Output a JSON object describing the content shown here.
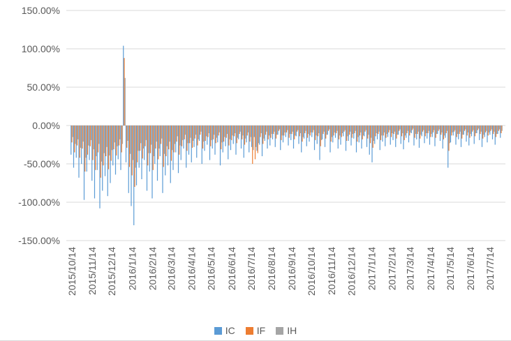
{
  "chart_data": {
    "type": "bar",
    "grid": true,
    "legend_position": "bottom",
    "y_axis": {
      "ticks": [
        "150.00%",
        "100.00%",
        "50.00%",
        "0.00%",
        "-50.00%",
        "-100.00%",
        "-150.00%"
      ],
      "min": -150,
      "max": 150,
      "unit": "%"
    },
    "x_axis": {
      "tick_labels": [
        "2015/10/14",
        "2015/11/14",
        "2015/12/14",
        "2016/1/14",
        "2016/2/14",
        "2016/3/14",
        "2016/4/14",
        "2016/5/14",
        "2016/6/14",
        "2016/7/14",
        "2016/8/14",
        "2016/9/14",
        "2016/10/14",
        "2016/11/14",
        "2016/12/14",
        "2017/1/14",
        "2017/2/14",
        "2017/3/14",
        "2017/4/14",
        "2017/5/14",
        "2017/6/14",
        "2017/7/14"
      ],
      "start_date": "2015/10/14",
      "end_date": "2017/7/31",
      "point_interval_days": 4
    },
    "series": [
      {
        "name": "IC",
        "color": "#5B9BD5",
        "values": [
          -38,
          -55,
          -42,
          -68,
          -50,
          -97,
          -60,
          -45,
          -72,
          -95,
          -58,
          -108,
          -85,
          -66,
          -92,
          -75,
          -52,
          -64,
          -44,
          -58,
          104,
          -48,
          -88,
          -105,
          -130,
          -78,
          -55,
          -70,
          -45,
          -85,
          -60,
          -95,
          -50,
          -72,
          -40,
          -88,
          -65,
          -52,
          -75,
          -58,
          -35,
          -62,
          -45,
          -30,
          -55,
          -38,
          -48,
          -28,
          -42,
          -20,
          -50,
          -33,
          -25,
          -45,
          -30,
          -38,
          -22,
          -52,
          -35,
          -27,
          -44,
          -32,
          -24,
          -38,
          -18,
          -30,
          -42,
          -22,
          -35,
          -28,
          -15,
          -33,
          -25,
          -40,
          -20,
          -30,
          -26,
          -18,
          -28,
          -12,
          -32,
          -22,
          -15,
          -26,
          -19,
          -30,
          -14,
          -24,
          -35,
          -17,
          -27,
          -21,
          -15,
          -32,
          -24,
          -45,
          -18,
          -28,
          -12,
          -35,
          -22,
          -16,
          -30,
          -25,
          -14,
          -33,
          -20,
          -26,
          -17,
          -35,
          -22,
          -30,
          -14,
          -28,
          -38,
          -48,
          -24,
          -18,
          -32,
          -21,
          -27,
          -15,
          -25,
          -19,
          -28,
          -12,
          -24,
          -31,
          -16,
          -22,
          -10,
          -26,
          -18,
          -29,
          -14,
          -23,
          -17,
          -25,
          -15,
          -27,
          -11,
          -20,
          -30,
          -16,
          -55,
          -22,
          -13,
          -25,
          -18,
          -28,
          -12,
          -21,
          -26,
          -14,
          -24,
          -10,
          -19,
          -28,
          -15,
          -22,
          -12,
          -18,
          -25,
          -11,
          -16
        ]
      },
      {
        "name": "IF",
        "color": "#ED7D31",
        "values": [
          -22,
          -35,
          -26,
          -42,
          -30,
          -60,
          -38,
          -27,
          -45,
          -58,
          -35,
          -68,
          -52,
          -40,
          -57,
          -46,
          -31,
          -39,
          -26,
          -35,
          88,
          -29,
          -54,
          -65,
          -80,
          -48,
          -33,
          -43,
          -27,
          -52,
          -36,
          -58,
          -30,
          -44,
          -24,
          -54,
          -40,
          -31,
          -46,
          -35,
          -21,
          -38,
          -27,
          -18,
          -33,
          -23,
          -29,
          -17,
          -26,
          -12,
          -30,
          -20,
          -15,
          -27,
          -18,
          -23,
          -13,
          -31,
          -21,
          -16,
          -26,
          -19,
          -14,
          -23,
          -11,
          -18,
          -25,
          -13,
          -21,
          -50,
          -44,
          -36,
          -15,
          -24,
          -12,
          -18,
          -16,
          -11,
          -17,
          -7,
          -19,
          -13,
          -9,
          -16,
          -11,
          -18,
          -8,
          -14,
          -21,
          -10,
          -16,
          -13,
          -9,
          -19,
          -14,
          -27,
          -11,
          -17,
          -7,
          -21,
          -13,
          -10,
          -18,
          -15,
          -8,
          -20,
          -12,
          -16,
          -10,
          -21,
          -13,
          -18,
          -8,
          -17,
          -23,
          -29,
          -14,
          -11,
          -19,
          -13,
          -16,
          -9,
          -15,
          -11,
          -17,
          -7,
          -14,
          -19,
          -10,
          -13,
          -6,
          -16,
          -11,
          -17,
          -8,
          -14,
          -10,
          -15,
          -9,
          -16,
          -7,
          -12,
          -18,
          -10,
          -33,
          -13,
          -8,
          -15,
          -11,
          -17,
          -7,
          -13,
          -16,
          -8,
          -14,
          -6,
          -11,
          -17,
          -9,
          -13,
          -7,
          -11,
          -15,
          -7,
          -10
        ]
      },
      {
        "name": "IH",
        "color": "#A5A5A5",
        "values": [
          -15,
          -24,
          -18,
          -29,
          -21,
          -42,
          -26,
          -19,
          -31,
          -40,
          -24,
          -47,
          -36,
          -28,
          -39,
          -32,
          -22,
          -27,
          -18,
          -24,
          62,
          -20,
          -37,
          -45,
          -55,
          -33,
          -23,
          -30,
          -19,
          -36,
          -25,
          -40,
          -21,
          -30,
          -17,
          -37,
          -27,
          -21,
          -32,
          -24,
          -14,
          -26,
          -19,
          -12,
          -23,
          -16,
          -20,
          -12,
          -18,
          -8,
          -21,
          -14,
          -10,
          -19,
          -12,
          -16,
          -9,
          -22,
          -15,
          -11,
          -18,
          -13,
          -10,
          -16,
          -8,
          -13,
          -17,
          -9,
          -15,
          -32,
          -28,
          -23,
          -10,
          -17,
          -8,
          -13,
          -11,
          -8,
          -12,
          -5,
          -13,
          -9,
          -6,
          -11,
          -8,
          -13,
          -6,
          -10,
          -15,
          -7,
          -11,
          -9,
          -6,
          -13,
          -10,
          -19,
          -8,
          -12,
          -5,
          -15,
          -9,
          -7,
          -13,
          -10,
          -6,
          -14,
          -8,
          -11,
          -7,
          -15,
          -9,
          -13,
          -6,
          -12,
          -16,
          -20,
          -10,
          -8,
          -13,
          -9,
          -11,
          -6,
          -10,
          -8,
          -12,
          -5,
          -10,
          -13,
          -7,
          -9,
          -4,
          -11,
          -8,
          -12,
          -6,
          -10,
          -7,
          -11,
          -6,
          -11,
          -5,
          -9,
          -13,
          -7,
          -23,
          -9,
          -6,
          -11,
          -8,
          -12,
          -5,
          -9,
          -11,
          -6,
          -10,
          -4,
          -8,
          -12,
          -7,
          -9,
          -5,
          -8,
          -11,
          -5,
          -7
        ]
      }
    ]
  },
  "colors": {
    "axis_text": "#595959",
    "gridline": "#d9d9d9",
    "background": "#ffffff"
  }
}
